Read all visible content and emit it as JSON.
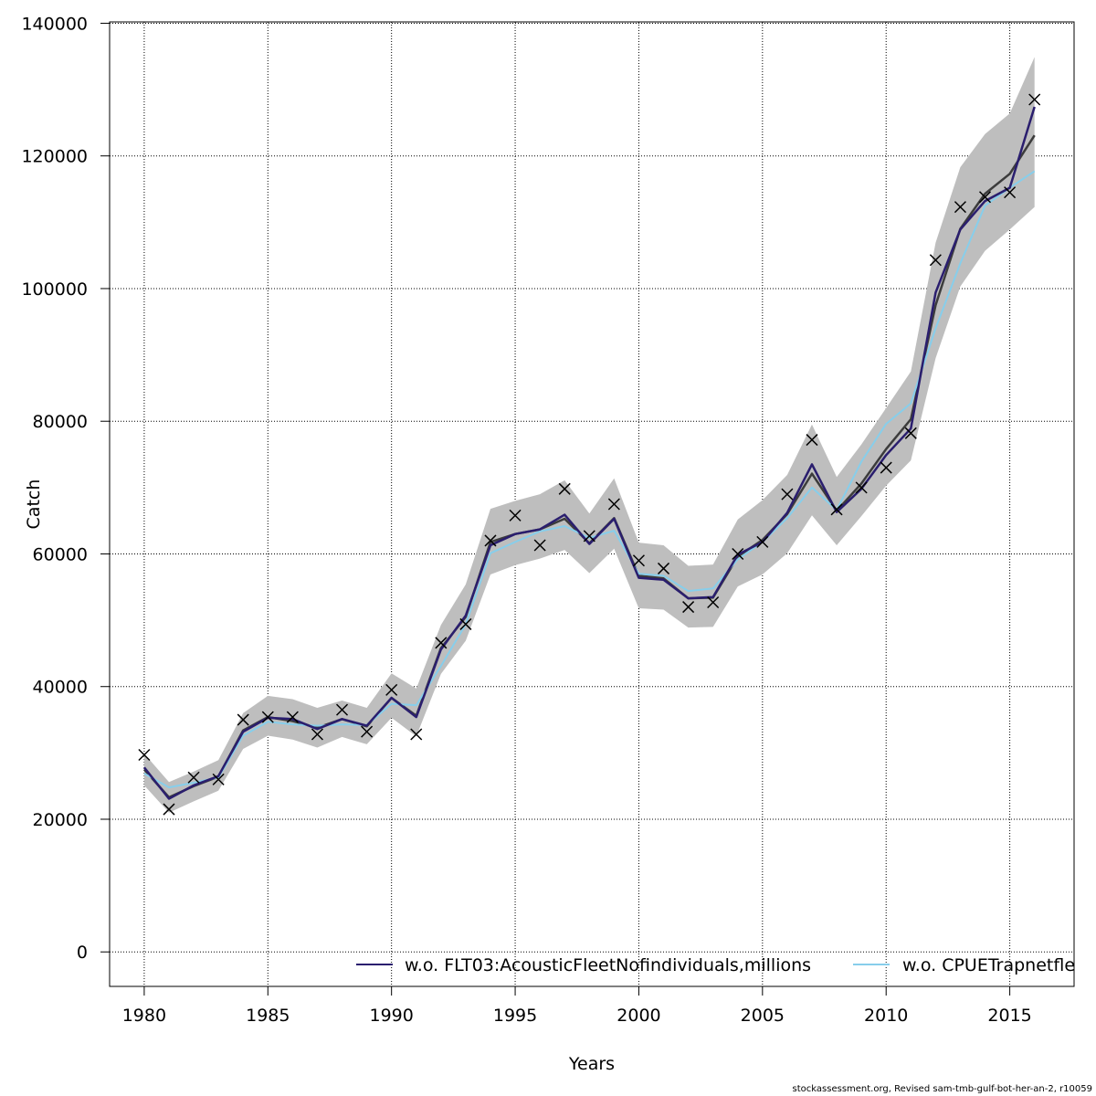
{
  "chart_data": {
    "type": "line",
    "xlabel": "Years",
    "ylabel": "Catch",
    "xlim": [
      1978.6,
      2017.6
    ],
    "ylim": [
      -5200,
      140200
    ],
    "x_ticks": [
      1980,
      1985,
      1990,
      1995,
      2000,
      2005,
      2010,
      2015
    ],
    "y_ticks": [
      0,
      20000,
      40000,
      60000,
      80000,
      100000,
      120000,
      140000
    ],
    "grid": true,
    "legend_position": "bottom-right",
    "x": [
      1980,
      1981,
      1982,
      1983,
      1984,
      1985,
      1986,
      1987,
      1988,
      1989,
      1990,
      1991,
      1992,
      1993,
      1994,
      1995,
      1996,
      1997,
      1998,
      1999,
      2000,
      2001,
      2002,
      2003,
      2004,
      2005,
      2006,
      2007,
      2008,
      2009,
      2010,
      2011,
      2012,
      2013,
      2014,
      2015,
      2016
    ],
    "observed": [
      29700,
      21500,
      26300,
      26000,
      35000,
      35400,
      35400,
      32800,
      36500,
      33200,
      39500,
      32800,
      46600,
      49400,
      62000,
      65800,
      61300,
      69800,
      62700,
      67500,
      59000,
      57800,
      52000,
      52700,
      60000,
      61800,
      69000,
      77200,
      66700,
      70000,
      73000,
      78200,
      104300,
      112300,
      113800,
      114500,
      128500
    ],
    "fit": [
      27500,
      23300,
      25000,
      26400,
      33400,
      35400,
      34800,
      33800,
      35100,
      34000,
      38300,
      35600,
      45800,
      50500,
      61800,
      63000,
      63700,
      65300,
      61600,
      65400,
      56700,
      56300,
      53300,
      53400,
      59600,
      62100,
      66000,
      72100,
      66500,
      70600,
      75800,
      80300,
      97500,
      109000,
      114300,
      117300,
      123100
    ],
    "ci_upper": [
      29900,
      25600,
      27200,
      28900,
      36000,
      38600,
      38100,
      36800,
      37900,
      36800,
      42000,
      39700,
      49300,
      55400,
      66800,
      68000,
      69000,
      71100,
      66100,
      71400,
      61700,
      61300,
      58200,
      58400,
      65200,
      68100,
      71900,
      79500,
      71600,
      76500,
      82000,
      87500,
      106900,
      118300,
      123300,
      126400,
      134900
    ],
    "ci_lower": [
      25100,
      21000,
      22700,
      24300,
      30600,
      32600,
      32000,
      30800,
      32400,
      31300,
      35300,
      32500,
      41900,
      46900,
      56900,
      58300,
      59300,
      60600,
      57100,
      60800,
      51800,
      51600,
      48900,
      49000,
      55100,
      56900,
      60100,
      65800,
      61300,
      65700,
      70300,
      74100,
      89500,
      100300,
      105700,
      108900,
      112300
    ],
    "series": [
      {
        "name": "w.o. FLT03:AcousticFleetNofindividuals,millions",
        "color": "#2a1e6e",
        "values": [
          27800,
          23100,
          25100,
          26500,
          33200,
          35300,
          35100,
          33600,
          35100,
          34100,
          38300,
          35400,
          45600,
          50700,
          61300,
          63000,
          63700,
          65900,
          61500,
          65300,
          56400,
          56100,
          53300,
          53500,
          59900,
          61800,
          66200,
          73500,
          66300,
          69800,
          74900,
          78900,
          99400,
          108900,
          113200,
          115200,
          127400
        ]
      },
      {
        "name": "w.o. CPUETrapnetfleet",
        "color": "#87ceeb",
        "values": [
          26900,
          24800,
          25500,
          26300,
          32600,
          34700,
          34300,
          34100,
          34300,
          34200,
          37400,
          37200,
          43100,
          49400,
          60100,
          61800,
          63400,
          64200,
          62400,
          63500,
          57000,
          56700,
          54400,
          54800,
          59200,
          61800,
          65400,
          70000,
          66600,
          73900,
          79600,
          82700,
          94000,
          103800,
          112500,
          115200,
          117700
        ]
      }
    ]
  },
  "legend": {
    "item1": "w.o. FLT03:AcousticFleetNofindividuals,millions",
    "item2": "w.o. CPUETrapnetfleet"
  },
  "footer": "stockassessment.org, Revised  sam-tmb-gulf-bot-her-an-2, r10059"
}
